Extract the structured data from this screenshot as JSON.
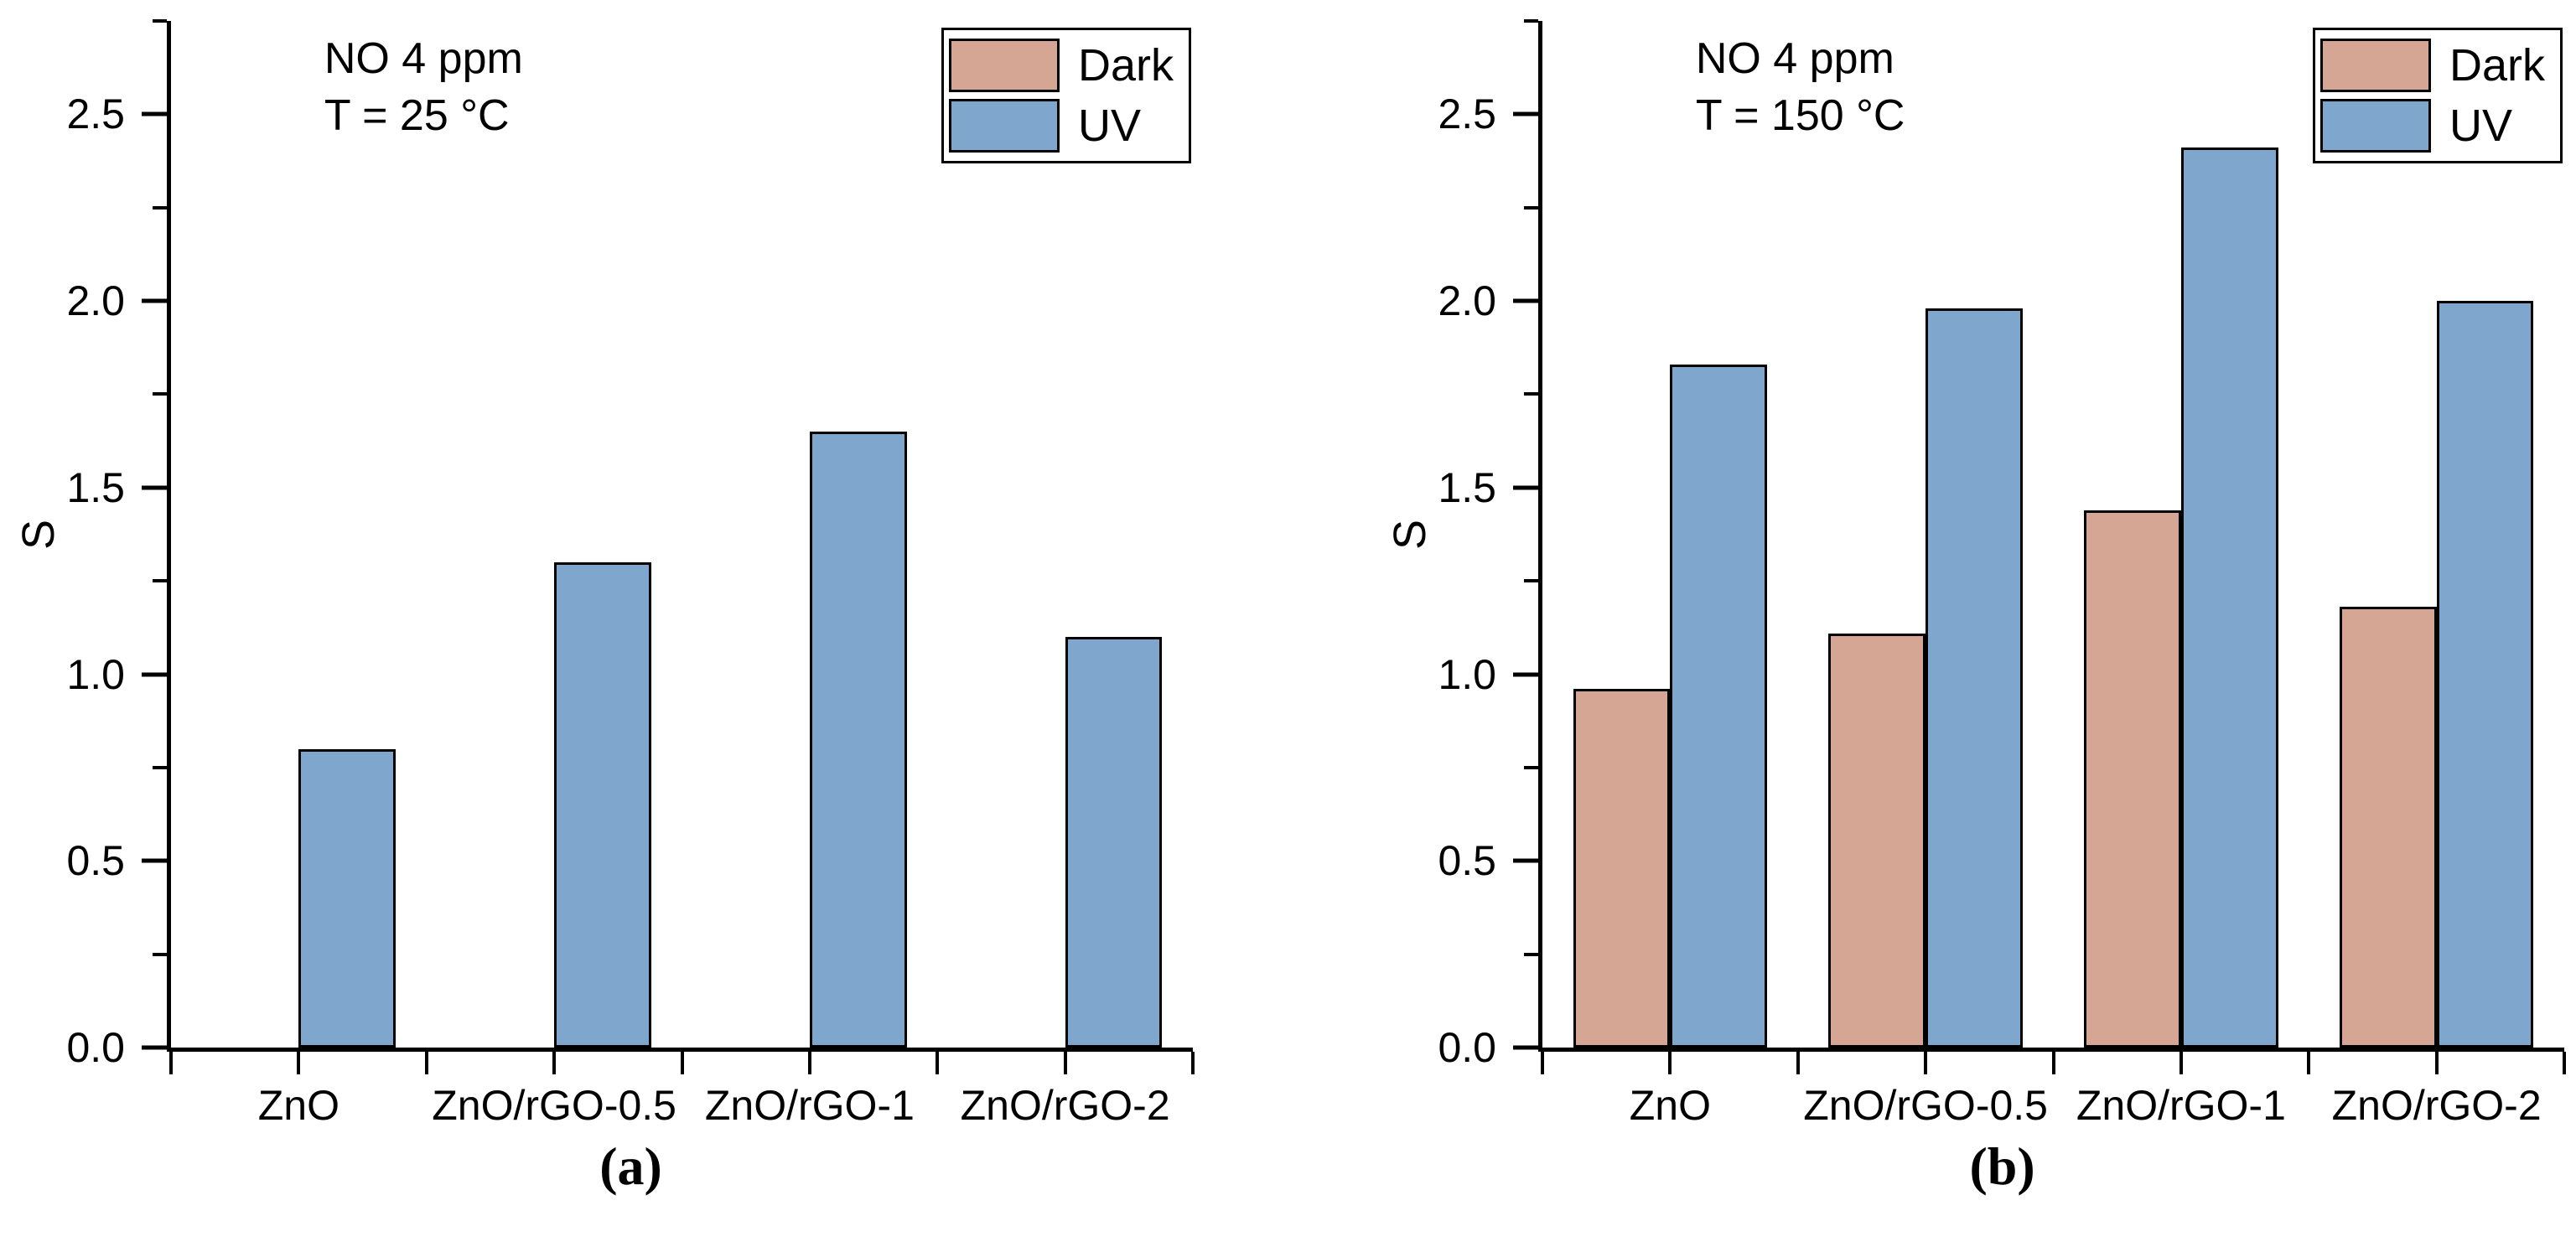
{
  "figure": {
    "background": "#ffffff",
    "text_color": "#000000"
  },
  "chart_data": [
    {
      "type": "bar",
      "panel": "a",
      "caption": "(a)",
      "annotation_line1": "NO 4 ppm",
      "annotation_line2": "T = 25 °C",
      "ylabel": "S",
      "xlabel": "",
      "ylim": [
        0,
        2.75
      ],
      "grid": false,
      "categories": [
        "ZnO",
        "ZnO/rGO-0.5",
        "ZnO/rGO-1",
        "ZnO/rGO-2"
      ],
      "series": [
        {
          "name": "Dark",
          "color": "#D5A694",
          "values": [
            null,
            null,
            null,
            null
          ]
        },
        {
          "name": "UV",
          "color": "#7FA6CD",
          "values": [
            0.8,
            1.3,
            1.65,
            1.1
          ]
        }
      ],
      "y_major_ticks": [
        0.0,
        0.5,
        1.0,
        1.5,
        2.0,
        2.5
      ],
      "y_tick_labels": [
        "0.0",
        "0.5",
        "1.0",
        "1.5",
        "2.0",
        "2.5"
      ],
      "y_minor_step": 0.25,
      "legend": {
        "position": "top-right",
        "entries": [
          "Dark",
          "UV"
        ]
      }
    },
    {
      "type": "bar",
      "panel": "b",
      "caption": "(b)",
      "annotation_line1": "NO 4 ppm",
      "annotation_line2": "T = 150 °C",
      "ylabel": "S",
      "xlabel": "",
      "ylim": [
        0,
        2.75
      ],
      "grid": false,
      "categories": [
        "ZnO",
        "ZnO/rGO-0.5",
        "ZnO/rGO-1",
        "ZnO/rGO-2"
      ],
      "series": [
        {
          "name": "Dark",
          "color": "#D5A694",
          "values": [
            0.96,
            1.11,
            1.44,
            1.18
          ]
        },
        {
          "name": "UV",
          "color": "#7FA6CD",
          "values": [
            1.83,
            1.98,
            2.41,
            2.0
          ]
        }
      ],
      "y_major_ticks": [
        0.0,
        0.5,
        1.0,
        1.5,
        2.0,
        2.5
      ],
      "y_tick_labels": [
        "0.0",
        "0.5",
        "1.0",
        "1.5",
        "2.0",
        "2.5"
      ],
      "y_minor_step": 0.25,
      "legend": {
        "position": "top-right",
        "entries": [
          "Dark",
          "UV"
        ]
      }
    }
  ]
}
